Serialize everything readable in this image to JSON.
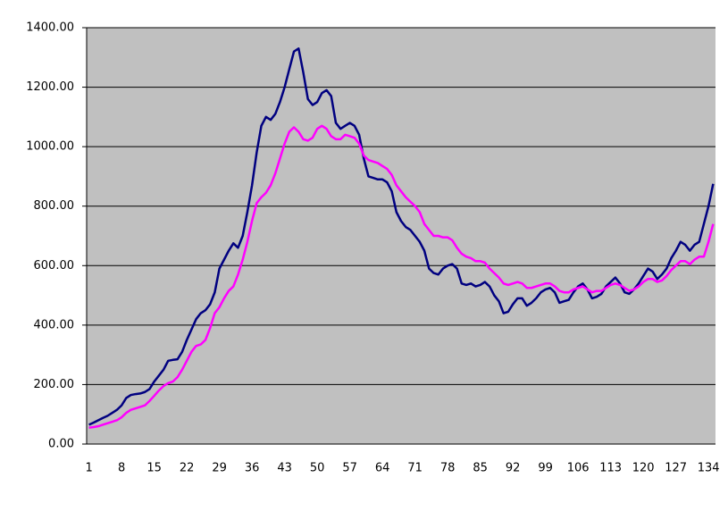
{
  "chart_data": {
    "type": "line",
    "categories": [
      "1",
      null,
      null,
      null,
      null,
      null,
      null,
      "8",
      null,
      null,
      null,
      null,
      null,
      null,
      "15",
      null,
      null,
      null,
      null,
      null,
      null,
      "22",
      null,
      null,
      null,
      null,
      null,
      null,
      "29",
      null,
      null,
      null,
      null,
      null,
      null,
      "36",
      null,
      null,
      null,
      null,
      null,
      null,
      "43",
      null,
      null,
      null,
      null,
      null,
      null,
      "50",
      null,
      null,
      null,
      null,
      null,
      null,
      "57",
      null,
      null,
      null,
      null,
      null,
      null,
      "64",
      null,
      null,
      null,
      null,
      null,
      null,
      "71",
      null,
      null,
      null,
      null,
      null,
      null,
      "78",
      null,
      null,
      null,
      null,
      null,
      null,
      "85",
      null,
      null,
      null,
      null,
      null,
      null,
      "92",
      null,
      null,
      null,
      null,
      null,
      null,
      "99",
      null,
      null,
      null,
      null,
      null,
      null,
      "106",
      null,
      null,
      null,
      null,
      null,
      null,
      "113",
      null,
      null,
      null,
      null,
      null,
      null,
      "120",
      null,
      null,
      null,
      null,
      null,
      null,
      "127",
      null,
      null,
      null,
      null,
      null,
      null,
      "134",
      null
    ],
    "series": [
      {
        "color": "#000080",
        "values": [
          65,
          72,
          80,
          88,
          95,
          105,
          115,
          130,
          155,
          165,
          168,
          170,
          175,
          185,
          210,
          230,
          250,
          280,
          283,
          285,
          310,
          350,
          385,
          420,
          440,
          450,
          470,
          510,
          590,
          620,
          650,
          675,
          660,
          700,
          780,
          870,
          980,
          1070,
          1100,
          1090,
          1110,
          1150,
          1200,
          1260,
          1320,
          1330,
          1250,
          1160,
          1140,
          1150,
          1180,
          1190,
          1170,
          1080,
          1060,
          1070,
          1080,
          1070,
          1040,
          960,
          900,
          895,
          890,
          890,
          880,
          850,
          780,
          750,
          730,
          720,
          700,
          680,
          650,
          590,
          575,
          570,
          590,
          600,
          605,
          590,
          540,
          535,
          540,
          530,
          535,
          545,
          530,
          500,
          480,
          440,
          445,
          470,
          490,
          490,
          465,
          475,
          490,
          510,
          520,
          525,
          510,
          475,
          480,
          485,
          510,
          530,
          540,
          520,
          490,
          495,
          505,
          530,
          545,
          560,
          540,
          510,
          505,
          520,
          540,
          565,
          590,
          580,
          555,
          570,
          590,
          625,
          650,
          680,
          670,
          650,
          670,
          680,
          740,
          800,
          875
        ]
      },
      {
        "color": "#ff00ff",
        "values": [
          55,
          57,
          60,
          65,
          70,
          75,
          80,
          90,
          105,
          115,
          120,
          125,
          130,
          145,
          162,
          180,
          195,
          205,
          210,
          225,
          250,
          280,
          310,
          330,
          335,
          350,
          390,
          440,
          460,
          490,
          515,
          530,
          570,
          620,
          680,
          750,
          810,
          830,
          845,
          870,
          910,
          960,
          1010,
          1050,
          1065,
          1050,
          1025,
          1020,
          1030,
          1060,
          1070,
          1060,
          1035,
          1025,
          1025,
          1040,
          1035,
          1030,
          1010,
          970,
          955,
          950,
          945,
          935,
          925,
          905,
          870,
          850,
          830,
          815,
          800,
          780,
          740,
          720,
          700,
          700,
          695,
          695,
          685,
          660,
          640,
          630,
          625,
          615,
          615,
          610,
          590,
          575,
          560,
          540,
          535,
          540,
          545,
          540,
          525,
          525,
          530,
          535,
          540,
          540,
          530,
          515,
          510,
          510,
          520,
          525,
          530,
          520,
          510,
          515,
          515,
          525,
          535,
          540,
          535,
          525,
          515,
          520,
          530,
          545,
          555,
          555,
          545,
          550,
          565,
          585,
          600,
          615,
          615,
          605,
          620,
          630,
          630,
          680,
          740
        ]
      }
    ],
    "ylim": [
      0,
      1400
    ],
    "yticks": [
      {
        "value": 0,
        "label": "0.00"
      },
      {
        "value": 200,
        "label": "200.00"
      },
      {
        "value": 400,
        "label": "400.00"
      },
      {
        "value": 600,
        "label": "600.00"
      },
      {
        "value": 800,
        "label": "800.00"
      },
      {
        "value": 1000,
        "label": "1000.00"
      },
      {
        "value": 1200,
        "label": "1200.00"
      },
      {
        "value": 1400,
        "label": "1400.00"
      }
    ],
    "grid": true,
    "plot_background": "#c0c0c0"
  }
}
